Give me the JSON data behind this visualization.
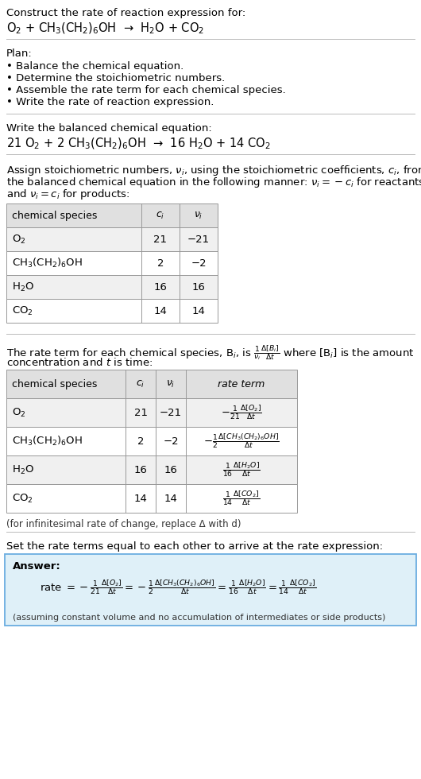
{
  "title_line1": "Construct the rate of reaction expression for:",
  "reaction_unbalanced": "O$_2$ + CH$_3$(CH$_2$)$_6$OH  →  H$_2$O + CO$_2$",
  "plan_header": "Plan:",
  "plan_items": [
    "• Balance the chemical equation.",
    "• Determine the stoichiometric numbers.",
    "• Assemble the rate term for each chemical species.",
    "• Write the rate of reaction expression."
  ],
  "balanced_header": "Write the balanced chemical equation:",
  "reaction_balanced": "21 O$_2$ + 2 CH$_3$(CH$_2$)$_6$OH  →  16 H$_2$O + 14 CO$_2$",
  "stoich_intro_lines": [
    "Assign stoichiometric numbers, $\\nu_i$, using the stoichiometric coefficients, $c_i$, from",
    "the balanced chemical equation in the following manner: $\\nu_i = -c_i$ for reactants",
    "and $\\nu_i = c_i$ for products:"
  ],
  "table1_headers": [
    "chemical species",
    "$c_i$",
    "$\\nu_i$"
  ],
  "table1_rows": [
    [
      "O$_2$",
      "21",
      "−21"
    ],
    [
      "CH$_3$(CH$_2$)$_6$OH",
      "2",
      "−2"
    ],
    [
      "H$_2$O",
      "16",
      "16"
    ],
    [
      "CO$_2$",
      "14",
      "14"
    ]
  ],
  "rate_intro_line1": "The rate term for each chemical species, B$_i$, is $\\frac{1}{\\nu_i}\\frac{\\Delta[B_i]}{\\Delta t}$ where [B$_i$] is the amount",
  "rate_intro_line2": "concentration and $t$ is time:",
  "table2_headers": [
    "chemical species",
    "$c_i$",
    "$\\nu_i$",
    "rate term"
  ],
  "table2_rows": [
    [
      "O$_2$",
      "21",
      "−21",
      "$-\\frac{1}{21}\\frac{\\Delta[O_2]}{\\Delta t}$"
    ],
    [
      "CH$_3$(CH$_2$)$_6$OH",
      "2",
      "−2",
      "$-\\frac{1}{2}\\frac{\\Delta[CH_3(CH_2)_6OH]}{\\Delta t}$"
    ],
    [
      "H$_2$O",
      "16",
      "16",
      "$\\frac{1}{16}\\frac{\\Delta[H_2O]}{\\Delta t}$"
    ],
    [
      "CO$_2$",
      "14",
      "14",
      "$\\frac{1}{14}\\frac{\\Delta[CO_2]}{\\Delta t}$"
    ]
  ],
  "delta_note": "(for infinitesimal rate of change, replace Δ with d)",
  "set_equal_header": "Set the rate terms equal to each other to arrive at the rate expression:",
  "answer_label": "Answer:",
  "answer_line1": "rate $= -\\frac{1}{21}\\frac{\\Delta[O_2]}{\\Delta t} = -\\frac{1}{2}\\frac{\\Delta[CH_3(CH_2)_6OH]}{\\Delta t} = \\frac{1}{16}\\frac{\\Delta[H_2O]}{\\Delta t} = \\frac{1}{14}\\frac{\\Delta[CO_2]}{\\Delta t}$",
  "answer_note": "(assuming constant volume and no accumulation of intermediates or side products)",
  "bg_color": "#ffffff",
  "table_header_bg": "#e0e0e0",
  "table_row_bg1": "#f0f0f0",
  "table_row_bg2": "#ffffff",
  "answer_box_bg": "#dff0f8",
  "answer_box_border": "#6aade0",
  "separator_color": "#bbbbbb",
  "font_size": 9.5,
  "font_size_reaction": 10.5,
  "font_size_small": 8.5
}
